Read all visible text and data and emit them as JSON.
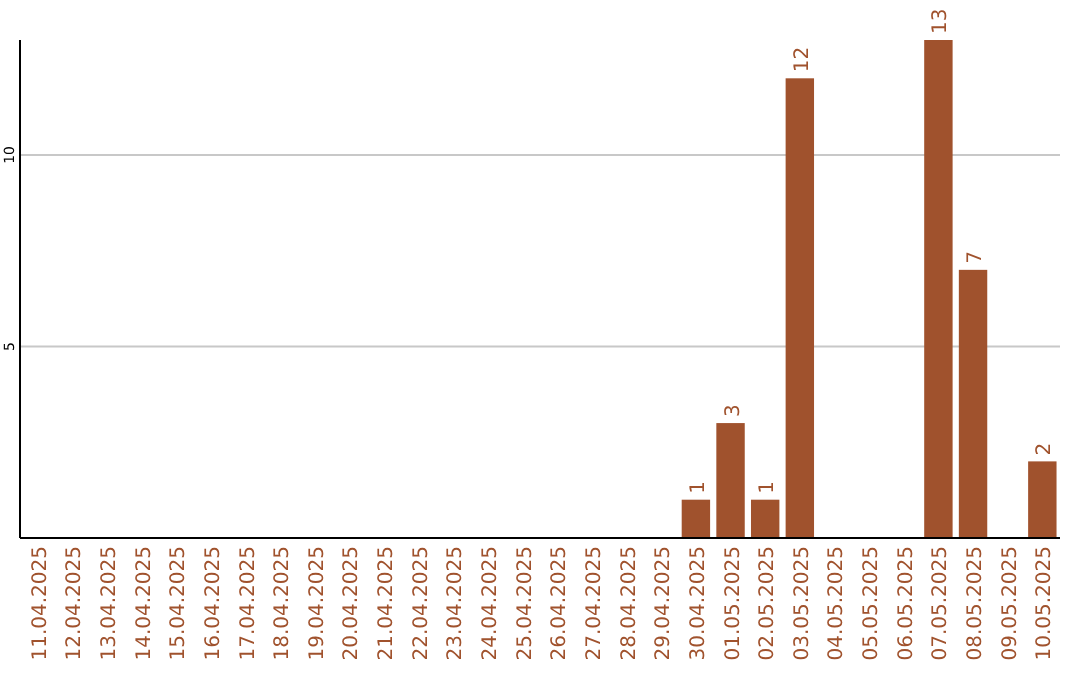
{
  "chart_data": {
    "type": "bar",
    "categories": [
      "11.04.2025",
      "12.04.2025",
      "13.04.2025",
      "14.04.2025",
      "15.04.2025",
      "16.04.2025",
      "17.04.2025",
      "18.04.2025",
      "19.04.2025",
      "20.04.2025",
      "21.04.2025",
      "22.04.2025",
      "23.04.2025",
      "24.04.2025",
      "25.04.2025",
      "26.04.2025",
      "27.04.2025",
      "28.04.2025",
      "29.04.2025",
      "30.04.2025",
      "01.05.2025",
      "02.05.2025",
      "03.05.2025",
      "04.05.2025",
      "05.05.2025",
      "06.05.2025",
      "07.05.2025",
      "08.05.2025",
      "09.05.2025",
      "10.05.2025"
    ],
    "values": [
      0,
      0,
      0,
      0,
      0,
      0,
      0,
      0,
      0,
      0,
      0,
      0,
      0,
      0,
      0,
      0,
      0,
      0,
      0,
      1,
      3,
      1,
      12,
      0,
      0,
      0,
      13,
      7,
      0,
      2
    ],
    "value_labels": [
      null,
      null,
      null,
      null,
      null,
      null,
      null,
      null,
      null,
      null,
      null,
      null,
      null,
      null,
      null,
      null,
      null,
      null,
      null,
      "1",
      "3",
      "1",
      "12",
      null,
      null,
      null,
      "13",
      "7",
      null,
      "2"
    ],
    "color": "#a0522d",
    "ylim": [
      0,
      13
    ],
    "yticks": [
      5,
      10
    ],
    "grid": "y"
  }
}
